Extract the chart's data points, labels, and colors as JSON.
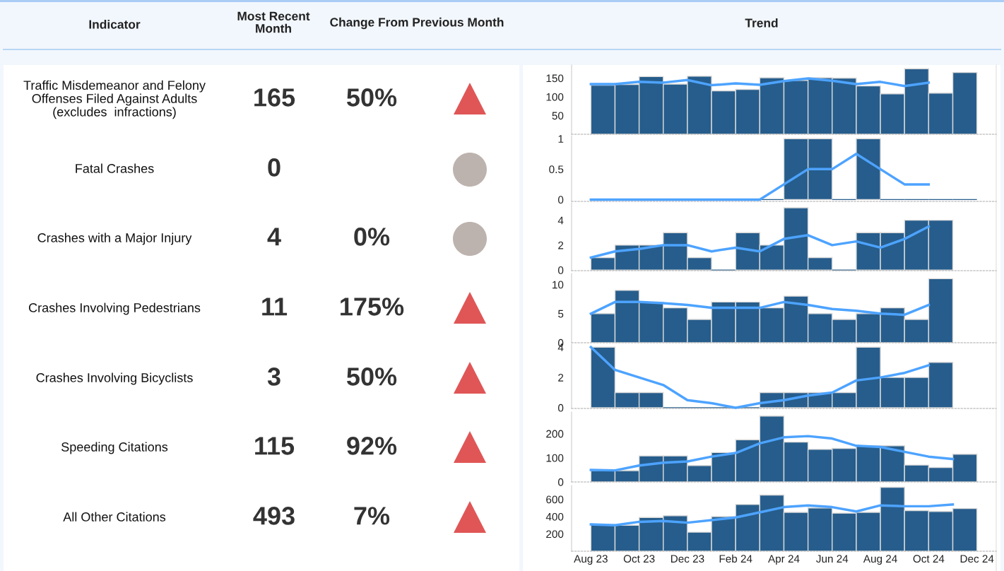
{
  "chart_data": [
    {
      "type": "other",
      "annotations": [
        "Indicator",
        "Most Recent\nMonth",
        "Change From Previous Month",
        "Trend",
        "Traffic Misdemeanor and Felony\nOffenses Filed Against Adults\n(excludes  infractions)",
        "165",
        "50%",
        "Fatal Crashes",
        "0",
        "Crashes with a Major Injury",
        "4",
        "0%",
        "Crashes Involving Pedestrians",
        "11",
        "175%",
        "Crashes Involving Bicyclists",
        "3",
        "50%",
        "Speeding Citations",
        "115",
        "92%",
        "All Other Citations",
        "493",
        "7%"
      ]
    },
    {
      "type": "bar",
      "x": [
        "2023-08-16",
        "2023-09-16",
        "2023-10-16",
        "2023-11-16",
        "2023-12-16",
        "2024-01-16",
        "2024-02-16",
        "2024-03-16",
        "2024-04-16",
        "2024-05-16",
        "2024-06-16",
        "2024-07-16",
        "2024-08-16",
        "2024-09-16",
        "2024-10-16",
        "2024-11-16"
      ],
      "xlim": [
        "2023-07-07",
        "2024-12-25"
      ],
      "ylim": [
        0,
        185
      ],
      "yticks": [
        50,
        100,
        150
      ],
      "tick_labels": "y",
      "series": [
        {
          "type": "bar",
          "color": "#265d8c",
          "values": [
            131,
            133,
            154,
            134,
            155,
            116,
            120,
            151,
            144,
            151,
            150,
            129,
            108,
            175,
            110,
            165
          ]
        },
        {
          "type": "line",
          "color": "#4da3ff",
          "x": [
            "2023-08",
            "2023-09",
            "2023-10",
            "2023-11",
            "2023-12",
            "2024-01",
            "2024-02",
            "2024-03",
            "2024-04",
            "2024-05",
            "2024-06",
            "2024-07",
            "2024-08",
            "2024-09",
            "2024-10"
          ],
          "values": [
            134,
            134,
            140,
            138,
            145,
            131,
            136,
            132,
            142,
            149,
            143,
            134,
            140,
            129,
            138
          ]
        }
      ]
    },
    {
      "type": "bar",
      "x": [
        "2023-08-16",
        "2023-09-16",
        "2023-10-16",
        "2023-11-16",
        "2023-12-16",
        "2024-01-16",
        "2024-02-16",
        "2024-03-16",
        "2024-04-16",
        "2024-05-16",
        "2024-06-16",
        "2024-07-16",
        "2024-08-16",
        "2024-09-16",
        "2024-10-16",
        "2024-11-16"
      ],
      "xlim": [
        "2023-07-07",
        "2024-12-25"
      ],
      "ylim": [
        -0.03,
        1.05
      ],
      "yticks": [
        0,
        0.5,
        1
      ],
      "tick_labels": "y",
      "series": [
        {
          "type": "bar",
          "color": "#265d8c",
          "values": [
            0,
            0,
            0,
            0,
            0,
            0,
            0,
            0,
            1,
            1,
            0,
            1,
            0,
            0,
            0,
            0
          ]
        },
        {
          "type": "line",
          "color": "#4da3ff",
          "x": [
            "2023-08",
            "2023-09",
            "2023-10",
            "2023-11",
            "2023-12",
            "2024-01",
            "2024-02",
            "2024-03",
            "2024-04",
            "2024-05",
            "2024-06",
            "2024-07",
            "2024-08",
            "2024-09",
            "2024-10"
          ],
          "values": [
            0,
            0,
            0,
            0,
            0,
            0,
            0,
            0,
            0.25,
            0.5,
            0.5,
            0.75,
            0.5,
            0.25,
            0.25
          ]
        }
      ]
    },
    {
      "type": "bar",
      "x": [
        "2023-08-16",
        "2023-09-16",
        "2023-10-16",
        "2023-11-16",
        "2023-12-16",
        "2024-01-16",
        "2024-02-16",
        "2024-03-16",
        "2024-04-16",
        "2024-05-16",
        "2024-06-16",
        "2024-07-16",
        "2024-08-16",
        "2024-09-16",
        "2024-10-16"
      ],
      "xlim": [
        "2023-07-07",
        "2024-12-25"
      ],
      "ylim": [
        -0.05,
        5.4
      ],
      "yticks": [
        0,
        2,
        4
      ],
      "tick_labels": "y",
      "series": [
        {
          "type": "bar",
          "color": "#265d8c",
          "values": [
            1,
            2,
            2,
            3,
            1,
            0,
            3,
            2,
            5,
            1,
            0,
            3,
            3,
            4,
            4
          ]
        },
        {
          "type": "line",
          "color": "#4da3ff",
          "x": [
            "2023-08",
            "2023-09",
            "2023-10",
            "2023-11",
            "2023-12",
            "2024-01",
            "2024-02",
            "2024-03",
            "2024-04",
            "2024-05",
            "2024-06",
            "2024-07",
            "2024-08",
            "2024-09",
            "2024-10"
          ],
          "values": [
            1,
            1.5,
            1.7,
            2,
            2,
            1.5,
            1.8,
            1.5,
            2.5,
            2.8,
            2,
            2.3,
            1.8,
            2.5,
            3.5
          ]
        }
      ]
    },
    {
      "type": "bar",
      "x": [
        "2023-08-16",
        "2023-09-16",
        "2023-10-16",
        "2023-11-16",
        "2023-12-16",
        "2024-01-16",
        "2024-02-16",
        "2024-03-16",
        "2024-04-16",
        "2024-05-16",
        "2024-06-16",
        "2024-07-16",
        "2024-08-16",
        "2024-09-16",
        "2024-10-16"
      ],
      "xlim": [
        "2023-07-07",
        "2024-12-25"
      ],
      "ylim": [
        0,
        11.9
      ],
      "yticks": [
        0,
        5,
        10
      ],
      "tick_labels": "y",
      "series": [
        {
          "type": "bar",
          "color": "#265d8c",
          "values": [
            5,
            9,
            7,
            6,
            4,
            7,
            7,
            6,
            8,
            5,
            4,
            5,
            6,
            4,
            11
          ]
        },
        {
          "type": "line",
          "color": "#4da3ff",
          "x": [
            "2023-08",
            "2023-09",
            "2023-10",
            "2023-11",
            "2023-12",
            "2024-01",
            "2024-02",
            "2024-03",
            "2024-04",
            "2024-05",
            "2024-06",
            "2024-07",
            "2024-08",
            "2024-09",
            "2024-10"
          ],
          "values": [
            5,
            7,
            7,
            6.8,
            6.5,
            6,
            6,
            6,
            7,
            6.5,
            5.8,
            5.5,
            5,
            4.8,
            6.5
          ]
        }
      ]
    },
    {
      "type": "bar",
      "x": [
        "2023-08-16",
        "2023-09-16",
        "2023-10-16",
        "2023-11-16",
        "2023-12-16",
        "2024-01-16",
        "2024-02-16",
        "2024-03-16",
        "2024-04-16",
        "2024-05-16",
        "2024-06-16",
        "2024-07-16",
        "2024-08-16",
        "2024-09-16",
        "2024-10-16"
      ],
      "xlim": [
        "2023-07-07",
        "2024-12-25"
      ],
      "ylim": [
        -0.05,
        4.2
      ],
      "yticks": [
        0,
        2,
        4
      ],
      "tick_labels": "y",
      "series": [
        {
          "type": "bar",
          "color": "#265d8c",
          "values": [
            4,
            1,
            1,
            0,
            0,
            0,
            0,
            1,
            1,
            1,
            1,
            4,
            2,
            2,
            3
          ]
        },
        {
          "type": "line",
          "color": "#4da3ff",
          "x": [
            "2023-08",
            "2023-09",
            "2023-10",
            "2023-11",
            "2023-12",
            "2024-01",
            "2024-02",
            "2024-03",
            "2024-04",
            "2024-05",
            "2024-06",
            "2024-07",
            "2024-08",
            "2024-09",
            "2024-10"
          ],
          "values": [
            4,
            2.5,
            2,
            1.5,
            0.5,
            0.3,
            0,
            0.3,
            0.5,
            0.8,
            1,
            1.8,
            2,
            2.3,
            2.8
          ]
        }
      ]
    },
    {
      "type": "bar",
      "x": [
        "2023-08-16",
        "2023-09-16",
        "2023-10-16",
        "2023-11-16",
        "2023-12-16",
        "2024-01-16",
        "2024-02-16",
        "2024-03-16",
        "2024-04-16",
        "2024-05-16",
        "2024-06-16",
        "2024-07-16",
        "2024-08-16",
        "2024-09-16",
        "2024-10-16",
        "2024-11-16"
      ],
      "xlim": [
        "2023-07-07",
        "2024-12-25"
      ],
      "ylim": [
        0,
        290
      ],
      "yticks": [
        0,
        100,
        200
      ],
      "tick_labels": "y",
      "series": [
        {
          "type": "bar",
          "color": "#265d8c",
          "values": [
            47,
            47,
            108,
            108,
            68,
            122,
            175,
            273,
            165,
            135,
            139,
            150,
            150,
            70,
            60,
            115
          ]
        },
        {
          "type": "line",
          "color": "#4da3ff",
          "x": [
            "2023-08",
            "2023-09",
            "2023-10",
            "2023-11",
            "2023-12",
            "2024-01",
            "2024-02",
            "2024-03",
            "2024-04",
            "2024-05",
            "2024-06",
            "2024-07",
            "2024-08",
            "2024-09",
            "2024-10",
            "2024-11"
          ],
          "values": [
            50,
            48,
            68,
            80,
            85,
            105,
            120,
            160,
            185,
            190,
            180,
            150,
            145,
            125,
            105,
            95
          ]
        }
      ]
    },
    {
      "type": "bar",
      "x": [
        "2023-08-16",
        "2023-09-16",
        "2023-10-16",
        "2023-11-16",
        "2023-12-16",
        "2024-01-16",
        "2024-02-16",
        "2024-03-16",
        "2024-04-16",
        "2024-05-16",
        "2024-06-16",
        "2024-07-16",
        "2024-08-16",
        "2024-09-16",
        "2024-10-16",
        "2024-11-16"
      ],
      "xlim": [
        "2023-07-07",
        "2024-12-25"
      ],
      "ylim": [
        0,
        760
      ],
      "yticks": [
        200,
        400,
        600
      ],
      "xticks": [
        {
          "value": "2023-08",
          "label": "Aug 23"
        },
        {
          "value": "2023-10",
          "label": "Oct 23"
        },
        {
          "value": "2023-12",
          "label": "Dec 23"
        },
        {
          "value": "2024-02",
          "label": "Feb 24"
        },
        {
          "value": "2024-04",
          "label": "Apr 24"
        },
        {
          "value": "2024-06",
          "label": "Jun 24"
        },
        {
          "value": "2024-08",
          "label": "Aug 24"
        },
        {
          "value": "2024-10",
          "label": "Oct 24"
        },
        {
          "value": "2024-12",
          "label": "Dec 24"
        }
      ],
      "series": [
        {
          "type": "bar",
          "color": "#265d8c",
          "values": [
            310,
            300,
            390,
            410,
            220,
            400,
            540,
            650,
            450,
            500,
            440,
            450,
            740,
            470,
            460,
            493
          ]
        },
        {
          "type": "line",
          "color": "#4da3ff",
          "x": [
            "2023-08",
            "2023-09",
            "2023-10",
            "2023-11",
            "2023-12",
            "2024-01",
            "2024-02",
            "2024-03",
            "2024-04",
            "2024-05",
            "2024-06",
            "2024-07",
            "2024-08",
            "2024-09",
            "2024-10",
            "2024-11"
          ],
          "values": [
            310,
            300,
            340,
            350,
            330,
            360,
            390,
            450,
            510,
            530,
            510,
            460,
            530,
            520,
            520,
            540
          ]
        }
      ]
    }
  ]
}
